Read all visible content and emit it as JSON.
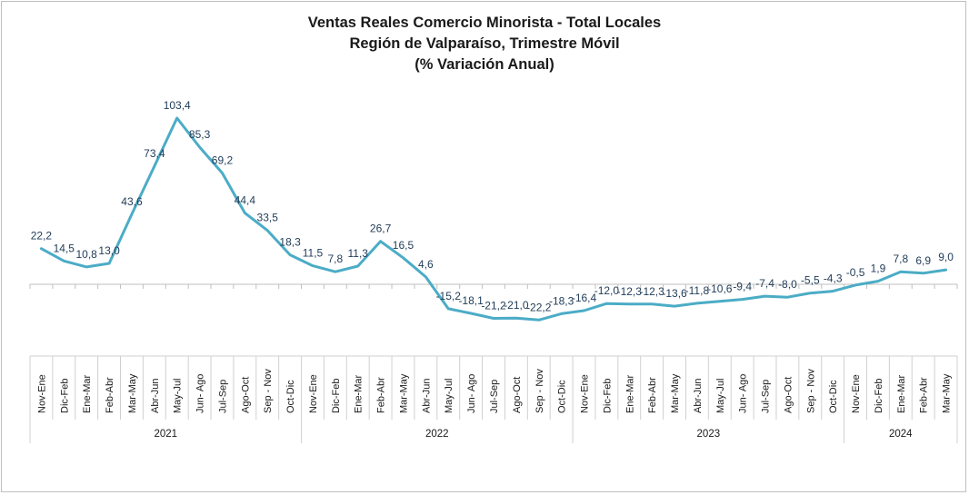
{
  "chart_data": {
    "type": "line",
    "title_lines": [
      "Ventas Reales Comercio Minorista - Total Locales",
      "Región de Valparaíso, Trimestre Móvil",
      "(% Variación Anual)"
    ],
    "categories": [
      "Nov-Ene",
      "Dic-Feb",
      "Ene-Mar",
      "Feb-Abr",
      "Mar-May",
      "Abr-Jun",
      "May-Jul",
      "Jun- Ago",
      "Jul-Sep",
      "Ago-Oct",
      "Sep - Nov",
      "Oct-Dic",
      "Nov-Ene",
      "Dic-Feb",
      "Ene-Mar",
      "Feb-Abr",
      "Mar-May",
      "Abr-Jun",
      "May-Jul",
      "Jun- Ago",
      "Jul-Sep",
      "Ago-Oct",
      "Sep - Nov",
      "Oct-Dic",
      "Nov-Ene",
      "Dic-Feb",
      "Ene-Mar",
      "Feb-Abr",
      "Mar-May",
      "Abr-Jun",
      "May-Jul",
      "Jun- Ago",
      "Jul-Sep",
      "Ago-Oct",
      "Sep - Nov",
      "Oct-Dic",
      "Nov-Ene",
      "Dic-Feb",
      "Ene-Mar",
      "Feb-Abr",
      "Mar-May"
    ],
    "values": [
      22.2,
      14.5,
      10.8,
      13.0,
      43.6,
      73.4,
      103.4,
      85.3,
      69.2,
      44.4,
      33.5,
      18.3,
      11.5,
      7.8,
      11.3,
      26.7,
      16.5,
      4.6,
      -15.2,
      -18.1,
      -21.2,
      -21.0,
      -22.2,
      -18.3,
      -16.4,
      -12.0,
      -12.3,
      -12.3,
      -13.6,
      -11.8,
      -10.6,
      -9.4,
      -7.4,
      -8.0,
      -5.5,
      -4.3,
      -0.5,
      1.9,
      7.8,
      6.9,
      9.0
    ],
    "data_labels": [
      "22,2",
      "14,5",
      "10,8",
      "13,0",
      "43,6",
      "73,4",
      "103,4",
      "85,3",
      "69,2",
      "44,4",
      "33,5",
      "18,3",
      "11,5",
      "7,8",
      "11,3",
      "26,7",
      "16,5",
      "4,6",
      "-15,2",
      "-18,1",
      "-21,2",
      "-21,0",
      "-22,2",
      "-18,3",
      "-16,4",
      "-12,0",
      "-12,3",
      "-12,3",
      "-13,6",
      "-11,8",
      "-10,6",
      "-9,4",
      "-7,4",
      "-8,0",
      "-5,5",
      "-4,3",
      "-0,5",
      "1,9",
      "7,8",
      "6,9",
      "9,0"
    ],
    "year_groups": [
      {
        "label": "2021",
        "count": 12
      },
      {
        "label": "2022",
        "count": 12
      },
      {
        "label": "2023",
        "count": 12
      },
      {
        "label": "2024",
        "count": 5
      }
    ],
    "ylim": [
      -40,
      115
    ],
    "grid": false,
    "legend": "none",
    "line_color": "#4bacc6"
  }
}
